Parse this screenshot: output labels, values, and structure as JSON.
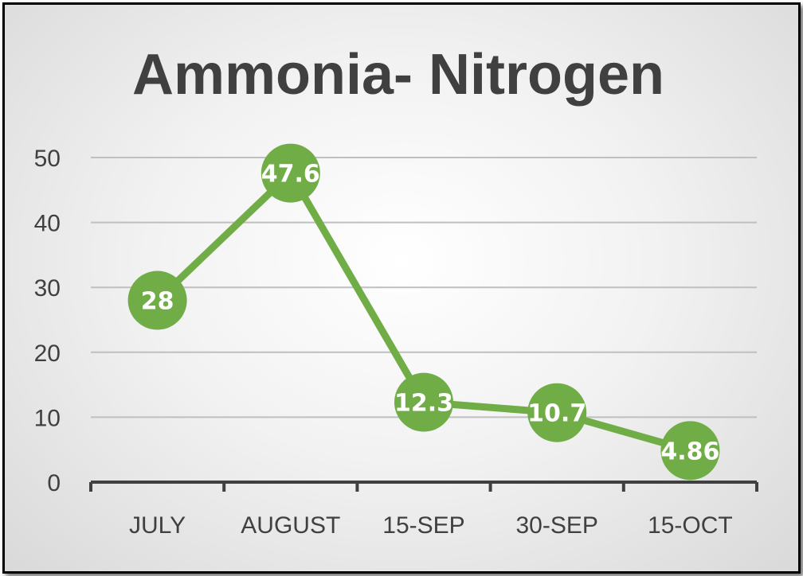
{
  "chart_data": {
    "type": "line",
    "title": "Ammonia- Nitrogen",
    "categories": [
      "JULY",
      "AUGUST",
      "15-SEP",
      "30-SEP",
      "15-OCT"
    ],
    "series": [
      {
        "values": [
          28,
          47.6,
          12.3,
          10.7,
          4.86
        ]
      }
    ],
    "data_labels": [
      "28",
      "47.6",
      "12.3",
      "10.7",
      "4.86"
    ],
    "yticks": [
      "0",
      "10",
      "20",
      "30",
      "40",
      "50"
    ],
    "ylim": [
      0,
      50
    ],
    "grid": true,
    "legend": "none",
    "colors": {
      "series": "#70ad47",
      "grid": "#bfbfbf",
      "axis": "#404040",
      "title": "#404040"
    }
  }
}
